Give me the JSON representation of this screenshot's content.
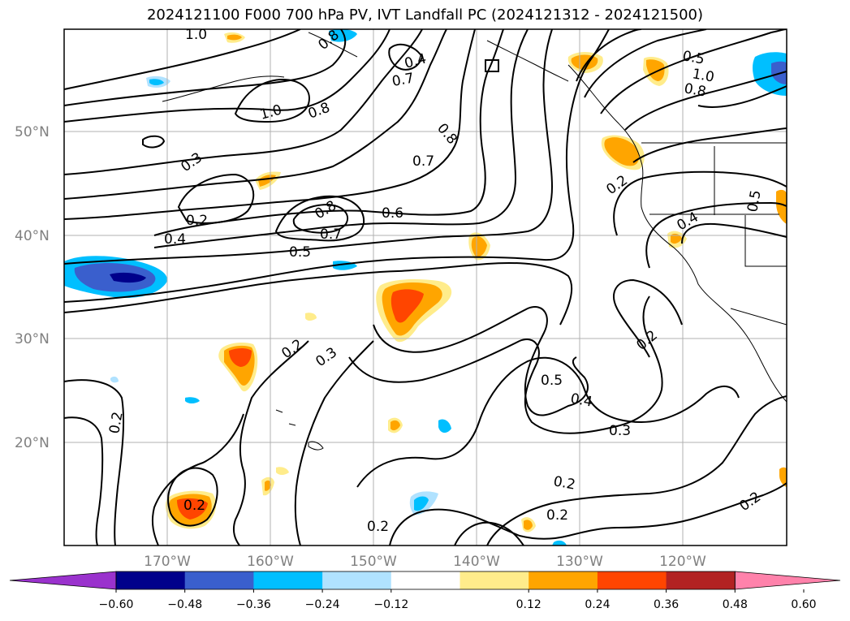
{
  "title": "2024121100 F000 700 hPa PV, IVT Landfall PC (2024121312 - 2024121500)",
  "latitude_labels": [
    "50°N",
    "40°N",
    "30°N",
    "20°N"
  ],
  "longitude_labels": [
    "170°W",
    "160°W",
    "150°W",
    "140°W",
    "130°W",
    "120°W"
  ],
  "colorbar": {
    "tick_labels": [
      "−0.60",
      "−0.48",
      "−0.36",
      "−0.24",
      "−0.12",
      "0.12",
      "0.24",
      "0.36",
      "0.48",
      "0.60"
    ],
    "colors": [
      "#9a32cd",
      "#00008b",
      "#3a5fcd",
      "#00bfff",
      "#b0e2ff",
      "#ffffff",
      "#ffec8b",
      "#ffa500",
      "#ff4500",
      "#b22222",
      "#ff82ab"
    ]
  },
  "contour_labels": [
    "1.0",
    "0.8",
    "0.8",
    "0.3",
    "0.2",
    "0.4",
    "0.5",
    "0.6",
    "0.7",
    "0.8",
    "0.7",
    "0.2",
    "0.3",
    "0.2",
    "0.2",
    "0.2",
    "0.2",
    "0.5",
    "0.4",
    "0.3",
    "0.2",
    "0.2",
    "0.2",
    "0.4",
    "0.5",
    "0.2",
    "1.0",
    "0.8",
    "0.7",
    "0.4",
    "0.5",
    "1.0",
    "0.8",
    "0.7"
  ]
}
